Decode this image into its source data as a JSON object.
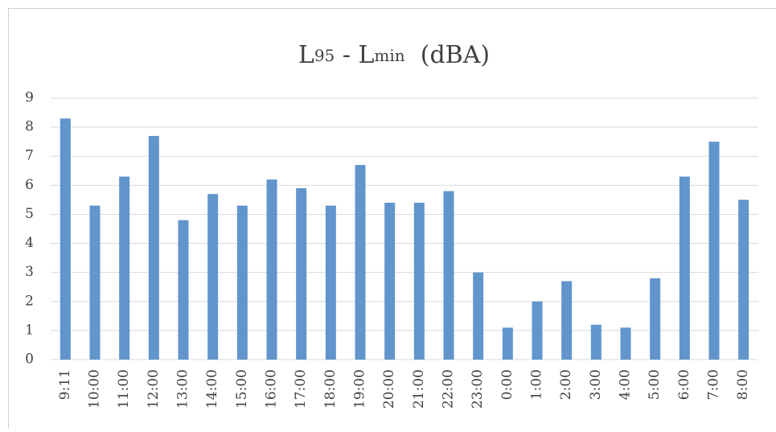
{
  "chart_data": {
    "type": "bar",
    "title": [
      {
        "text": "L"
      },
      {
        "text": "95",
        "sub": true
      },
      {
        "text": " - L"
      },
      {
        "text": "min",
        "sub": true
      },
      {
        "text": "  (dBA)"
      }
    ],
    "categories": [
      "9:11",
      "10:00",
      "11:00",
      "12:00",
      "13:00",
      "14:00",
      "15:00",
      "16:00",
      "17:00",
      "18:00",
      "19:00",
      "20:00",
      "21:00",
      "22:00",
      "23:00",
      "0:00",
      "1:00",
      "2:00",
      "3:00",
      "4:00",
      "5:00",
      "6:00",
      "7:00",
      "8:00"
    ],
    "values": [
      8.3,
      5.3,
      6.3,
      7.7,
      4.8,
      5.7,
      5.3,
      6.2,
      5.9,
      5.3,
      6.7,
      5.4,
      5.4,
      5.8,
      3.0,
      1.1,
      2.0,
      2.7,
      1.2,
      1.1,
      2.8,
      6.3,
      7.5,
      5.5
    ],
    "color": "#6195cc",
    "ylim": [
      0,
      9
    ],
    "yticks": [
      0,
      1,
      2,
      3,
      4,
      5,
      6,
      7,
      8,
      9
    ],
    "grid": true
  }
}
